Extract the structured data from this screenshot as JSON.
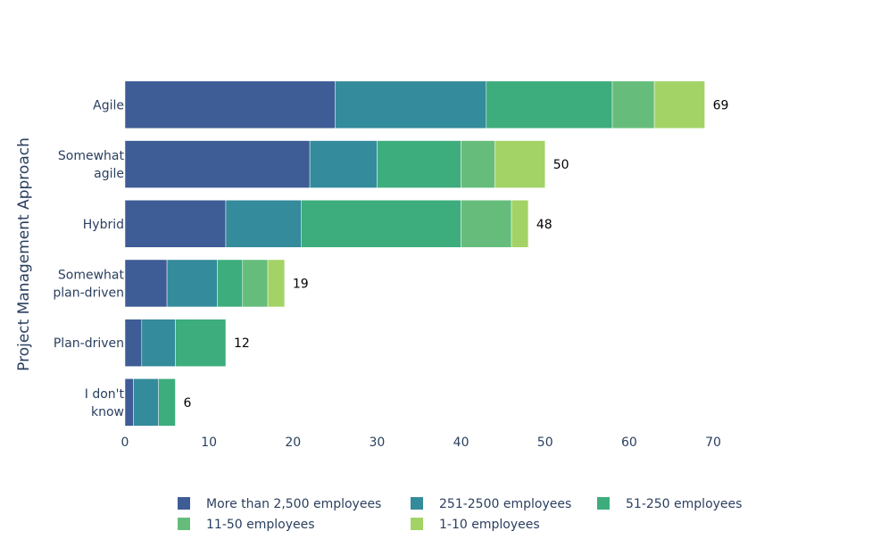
{
  "chart_data": {
    "type": "bar",
    "orientation": "horizontal",
    "stacked": true,
    "ylabel": "Project Management Approach",
    "xlabel": "",
    "xlim": [
      0,
      70
    ],
    "xticks": [
      0,
      10,
      20,
      30,
      40,
      50,
      60,
      70
    ],
    "categories": [
      {
        "lines": [
          "Agile"
        ]
      },
      {
        "lines": [
          "Somewhat",
          "agile"
        ]
      },
      {
        "lines": [
          "Hybrid"
        ]
      },
      {
        "lines": [
          "Somewhat",
          "plan-driven"
        ]
      },
      {
        "lines": [
          "Plan-driven"
        ]
      },
      {
        "lines": [
          "I don't",
          "know"
        ]
      }
    ],
    "series": [
      {
        "name": "More than 2,500 employees",
        "color": "#3e5c95",
        "values": [
          25,
          22,
          12,
          5,
          2,
          1
        ]
      },
      {
        "name": "251-2500 employees",
        "color": "#348b9b",
        "values": [
          18,
          8,
          9,
          6,
          4,
          3
        ]
      },
      {
        "name": "51-250 employees",
        "color": "#3dad7d",
        "values": [
          15,
          10,
          19,
          3,
          6,
          2
        ]
      },
      {
        "name": "11-50 employees",
        "color": "#66bd7b",
        "values": [
          5,
          4,
          6,
          3,
          0,
          0
        ]
      },
      {
        "name": "1-10 employees",
        "color": "#a3d366",
        "values": [
          6,
          6,
          2,
          2,
          0,
          0
        ]
      }
    ],
    "totals": [
      69,
      50,
      48,
      19,
      12,
      6
    ],
    "legend_position": "bottom"
  }
}
